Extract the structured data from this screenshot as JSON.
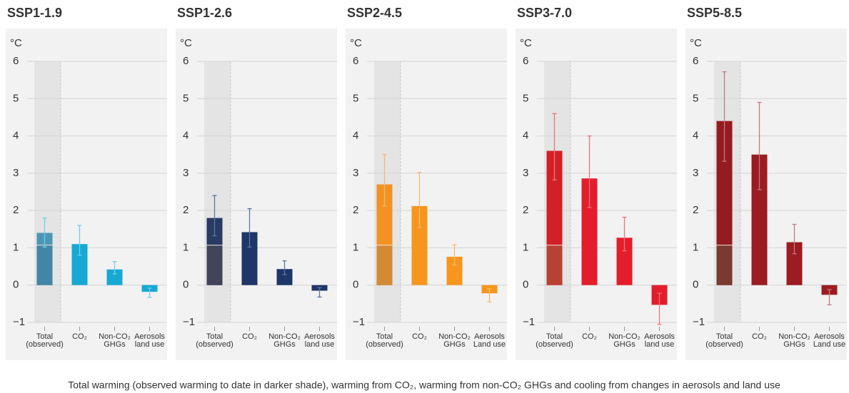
{
  "chart_data": [
    {
      "type": "bar",
      "title": "SSP1-1.9",
      "title_color": "#1aa7d2",
      "ylabel": "°C",
      "categories": [
        "Total\n(observed)",
        "CO₂",
        "Non-CO₂\nGHGs",
        "Aerosols\nland use"
      ],
      "values": [
        1.4,
        1.1,
        0.42,
        -0.18
      ],
      "error_low": [
        1.02,
        0.8,
        0.3,
        -0.33
      ],
      "error_high": [
        1.8,
        1.6,
        0.63,
        -0.08
      ],
      "observed": 1.07,
      "color": "#17a9d4",
      "total_color": "#4a97b5",
      "observed_color": "#4186a6",
      "error_color": "#74cde6",
      "ylim": [
        -1,
        6
      ],
      "yticks": [
        {
          "value": -1,
          "label": "−1"
        },
        0,
        1,
        2,
        3,
        4,
        5,
        6
      ],
      "grid": true
    },
    {
      "type": "bar",
      "title": "SSP1-2.6",
      "title_color": "#1e3668",
      "ylabel": "°C",
      "categories": [
        "Total\n(observed)",
        "CO₂",
        "Non-CO₂\nGHGs",
        "Aerosols\nland use"
      ],
      "values": [
        1.8,
        1.42,
        0.43,
        -0.15
      ],
      "error_low": [
        1.32,
        1.02,
        0.28,
        -0.32
      ],
      "error_high": [
        2.4,
        2.05,
        0.65,
        -0.07
      ],
      "observed": 1.07,
      "color": "#1e3668",
      "total_color": "#293a63",
      "observed_color": "#41445a",
      "error_color": "#5a78a0",
      "ylim": [
        -1,
        6
      ],
      "yticks": [
        {
          "value": -1,
          "label": "−1"
        },
        0,
        1,
        2,
        3,
        4,
        5,
        6
      ],
      "grid": true
    },
    {
      "type": "bar",
      "title": "SSP2-4.5",
      "title_color": "#f7961e",
      "ylabel": "°C",
      "categories": [
        "Total\n(observed)",
        "CO₂",
        "Non-CO₂\nGHGs",
        "Aerosols\nLand use"
      ],
      "values": [
        2.7,
        2.12,
        0.76,
        -0.22
      ],
      "error_low": [
        2.12,
        1.55,
        0.54,
        -0.45
      ],
      "error_high": [
        3.5,
        3.02,
        1.08,
        -0.1
      ],
      "observed": 1.07,
      "color": "#f7961e",
      "total_color": "#f39222",
      "observed_color": "#d48935",
      "error_color": "#f8b972",
      "ylim": [
        -1,
        6
      ],
      "yticks": [
        {
          "value": -1,
          "label": "−1"
        },
        0,
        1,
        2,
        3,
        4,
        5,
        6
      ],
      "grid": true
    },
    {
      "type": "bar",
      "title": "SSP3-7.0",
      "title_color": "#e31e2a",
      "ylabel": "°C",
      "categories": [
        "Total\n(observed)",
        "CO₂",
        "Non-CO₂\nGHGs",
        "Aerosols\nland use"
      ],
      "values": [
        3.6,
        2.86,
        1.27,
        -0.53
      ],
      "error_low": [
        2.82,
        2.08,
        0.92,
        -1.05
      ],
      "error_high": [
        4.6,
        4.0,
        1.82,
        -0.22
      ],
      "observed": 1.07,
      "color": "#e31e2a",
      "total_color": "#d32027",
      "observed_color": "#b94133",
      "error_color": "#ee7478",
      "ylim": [
        -1,
        6
      ],
      "yticks": [
        {
          "value": -1,
          "label": "−1"
        },
        0,
        1,
        2,
        3,
        4,
        5,
        6
      ],
      "grid": true
    },
    {
      "type": "bar",
      "title": "SSP5-8.5",
      "title_color": "#9b1c22",
      "ylabel": "°C",
      "categories": [
        "Total\n(observed)",
        "CO₂",
        "Non-CO₂\nGHGs",
        "Aerosols\nLand use"
      ],
      "values": [
        4.4,
        3.5,
        1.15,
        -0.26
      ],
      "error_low": [
        3.32,
        2.56,
        0.84,
        -0.53
      ],
      "error_high": [
        5.72,
        4.9,
        1.63,
        -0.12
      ],
      "observed": 1.07,
      "color": "#9b1c22",
      "total_color": "#961b20",
      "observed_color": "#7a3a30",
      "error_color": "#c47a80",
      "ylim": [
        -1,
        6
      ],
      "yticks": [
        {
          "value": -1,
          "label": "−1"
        },
        0,
        1,
        2,
        3,
        4,
        5,
        6
      ],
      "grid": true
    }
  ],
  "caption": "Total warming (observed warming to date in darker shade), warming from CO₂, warming from non-CO₂ GHGs and cooling from changes in aerosols and land use"
}
